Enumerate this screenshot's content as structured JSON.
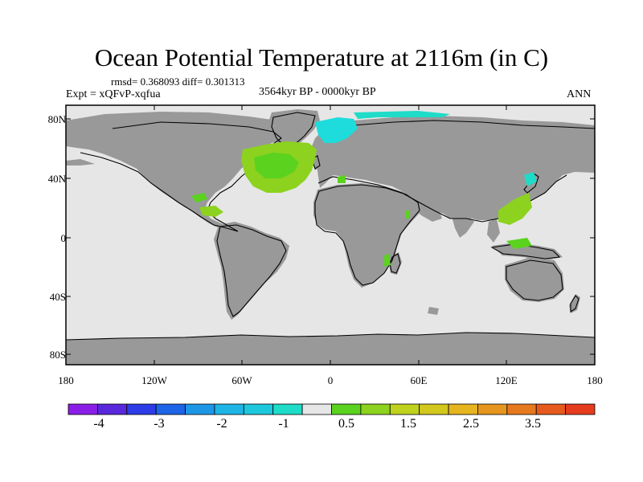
{
  "title": "Ocean Potential Temperature at 2116m (in C)",
  "stats": "rmsd= 0.368093 diff= 0.301313",
  "experiment": "Expt = xQFvP-xqfua",
  "period": "3564kyr BP - 0000kyr BP",
  "season": "ANN",
  "y_axis_labels": [
    "80N",
    "40N",
    "0",
    "40S",
    "80S"
  ],
  "x_axis_labels": [
    "180",
    "120W",
    "60W",
    "0",
    "60E",
    "120E",
    "180"
  ],
  "colorbar": {
    "colors": [
      "#8a1ee6",
      "#5a28dc",
      "#2d3ce6",
      "#1e64e6",
      "#1e96e6",
      "#1eb4e6",
      "#1ec8dc",
      "#1edcc8",
      "#e6e6e6",
      "#5ad21e",
      "#8cd21e",
      "#bed21e",
      "#d2c81e",
      "#e6b41e",
      "#e6961e",
      "#e6781e",
      "#e65a1e",
      "#e63c1e"
    ],
    "labels": [
      "-4",
      "-3",
      "-2",
      "-1",
      "0.5",
      "1.5",
      "2.5",
      "3.5"
    ]
  },
  "map_colors": {
    "ocean": "#e6e6e6",
    "land": "#999999",
    "coast": "#000000"
  }
}
